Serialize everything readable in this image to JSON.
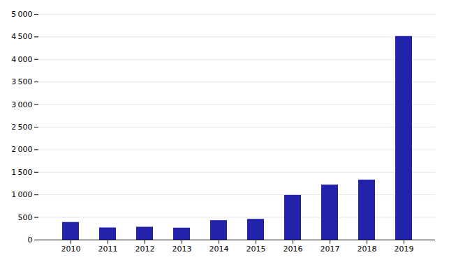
{
  "chart_data": {
    "type": "bar",
    "categories": [
      "2010",
      "2011",
      "2012",
      "2013",
      "2014",
      "2015",
      "2016",
      "2017",
      "2018",
      "2019"
    ],
    "values": [
      390,
      270,
      285,
      265,
      430,
      460,
      990,
      1220,
      1330,
      4510
    ],
    "color": "#2222aa",
    "ylim": [
      0,
      5000
    ],
    "yticks": [
      0,
      500,
      {
        "value": 1000,
        "label": "1 000"
      },
      {
        "value": 1500,
        "label": "1 500"
      },
      {
        "value": 2000,
        "label": "2 000"
      },
      {
        "value": 2500,
        "label": "2 500"
      },
      {
        "value": 3000,
        "label": "3 000"
      },
      {
        "value": 3500,
        "label": "3 500"
      },
      {
        "value": 4000,
        "label": "4 000"
      },
      {
        "value": 4500,
        "label": "4 500"
      },
      {
        "value": 5000,
        "label": "5 000"
      }
    ],
    "grid": true
  }
}
